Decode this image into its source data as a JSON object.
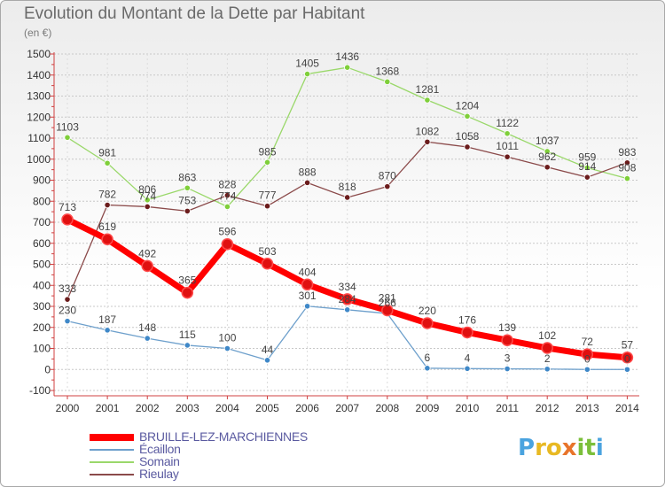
{
  "title": "Evolution du Montant de la Dette par Habitant",
  "subtitle": "(en €)",
  "logo": {
    "letters": [
      {
        "ch": "P",
        "color": "#4aa3df"
      },
      {
        "ch": "r",
        "color": "#e8b923"
      },
      {
        "ch": "o",
        "color": "#e8b923"
      },
      {
        "ch": "x",
        "color": "#e8742a"
      },
      {
        "ch": "i",
        "color": "#7bbf3a"
      },
      {
        "ch": "t",
        "color": "#7bbf3a"
      },
      {
        "ch": "i",
        "color": "#4aa3df"
      }
    ]
  },
  "chart_data": {
    "type": "line",
    "title": "Evolution du Montant de la Dette par Habitant",
    "subtitle": "(en €)",
    "xlabel": "",
    "ylabel": "",
    "categories": [
      "2000",
      "2001",
      "2002",
      "2003",
      "2004",
      "2005",
      "2006",
      "2007",
      "2008",
      "2009",
      "2010",
      "2011",
      "2012",
      "2013",
      "2014"
    ],
    "ylim": [
      -100,
      1500
    ],
    "yticks": [
      -100,
      0,
      100,
      200,
      300,
      400,
      500,
      600,
      700,
      800,
      900,
      1000,
      1100,
      1200,
      1300,
      1400,
      1500
    ],
    "grid": "horizontal dashed",
    "legend_position": "bottom-left",
    "series": [
      {
        "name": "BRUILLE-LEZ-MARCHIENNES",
        "color": "#ff0000",
        "point_color": "#e01010",
        "width": 7,
        "radius": 6,
        "values": [
          713,
          619,
          492,
          365,
          596,
          503,
          404,
          334,
          281,
          220,
          176,
          139,
          102,
          72,
          57
        ]
      },
      {
        "name": "Écaillon",
        "color": "#6ea0cc",
        "point_color": "#3f88c8",
        "width": 1.3,
        "radius": 3.2,
        "values": [
          230,
          187,
          148,
          115,
          100,
          44,
          301,
          284,
          266,
          6,
          4,
          3,
          2,
          0,
          0
        ]
      },
      {
        "name": "Somain",
        "color": "#9ad86a",
        "point_color": "#7fcf3a",
        "width": 1.3,
        "radius": 3.2,
        "values": [
          1103,
          981,
          806,
          863,
          774,
          985,
          1405,
          1436,
          1368,
          1281,
          1204,
          1122,
          1037,
          959,
          908
        ]
      },
      {
        "name": "Rieulay",
        "color": "#8b4a4a",
        "point_color": "#6b1c1c",
        "width": 1.3,
        "radius": 3.2,
        "values": [
          333,
          782,
          774,
          753,
          828,
          777,
          888,
          818,
          870,
          1082,
          1058,
          1011,
          962,
          914,
          983
        ]
      }
    ]
  }
}
